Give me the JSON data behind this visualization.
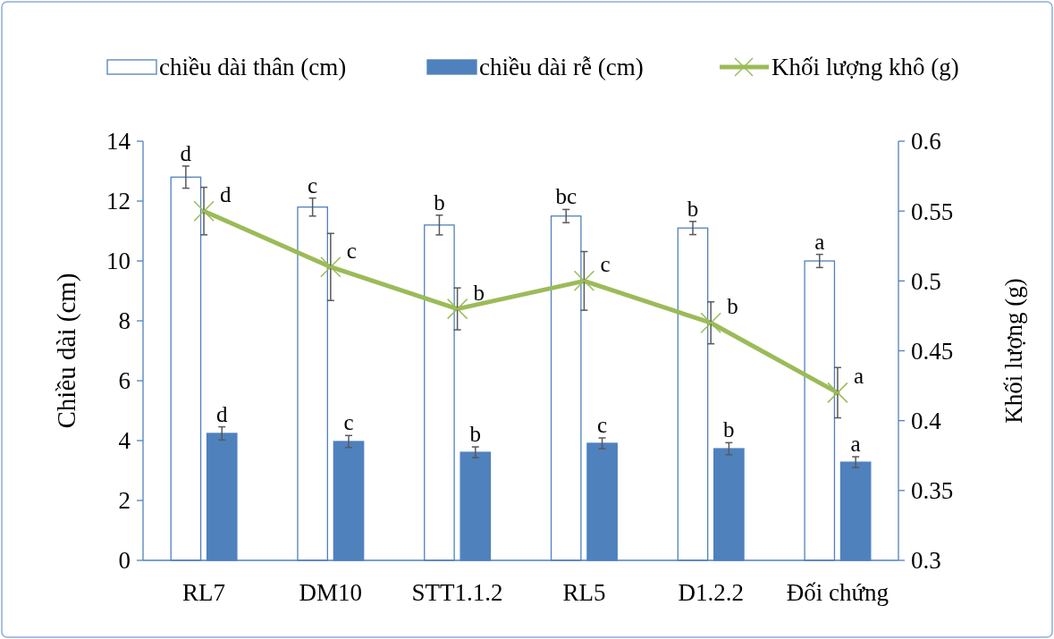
{
  "chart_data": {
    "type": "bar",
    "categories": [
      "RL7",
      "DM10",
      "STT1.1.2",
      "RL5",
      "D1.2.2",
      "Đối chứng"
    ],
    "ylabel": "Chiều dài (cm)",
    "y2label": "Khối lượng (g)",
    "ylim": [
      0,
      14
    ],
    "yticks": [
      0,
      2,
      4,
      6,
      8,
      10,
      12,
      14
    ],
    "y2lim": [
      0.3,
      0.6
    ],
    "y2ticks": [
      0.3,
      0.35,
      0.4,
      0.45,
      0.5,
      0.55,
      0.6
    ],
    "legend": "top",
    "grid": false,
    "marker": "cross",
    "line_style": "solid",
    "series": [
      {
        "name": "chiều dài thân (cm)",
        "color": "#ffffff",
        "values": [
          12.8,
          11.8,
          11.2,
          11.5,
          11.1,
          10.0
        ],
        "errors": [
          0.37,
          0.3,
          0.33,
          0.22,
          0.22,
          0.22
        ],
        "value_labels": [
          "d",
          "c",
          "b",
          "bc",
          "b",
          "a"
        ]
      },
      {
        "name": "chiều dài rễ (cm)",
        "color": "#4f81bd",
        "values": [
          4.24,
          3.97,
          3.61,
          3.91,
          3.73,
          3.28
        ],
        "errors": [
          0.22,
          0.2,
          0.18,
          0.18,
          0.2,
          0.18
        ],
        "value_labels": [
          "d",
          "c",
          "b",
          "c",
          "b",
          "a"
        ]
      },
      {
        "name": "Khối lượng khô (g)",
        "type": "line",
        "axis": "y2",
        "color": "#9bbb59",
        "values": [
          0.55,
          0.51,
          0.48,
          0.5,
          0.47,
          0.42
        ],
        "errors": [
          0.017,
          0.024,
          0.015,
          0.021,
          0.015,
          0.018
        ],
        "value_labels": [
          "d",
          "c",
          "b",
          "c",
          "b",
          "a"
        ]
      }
    ]
  }
}
